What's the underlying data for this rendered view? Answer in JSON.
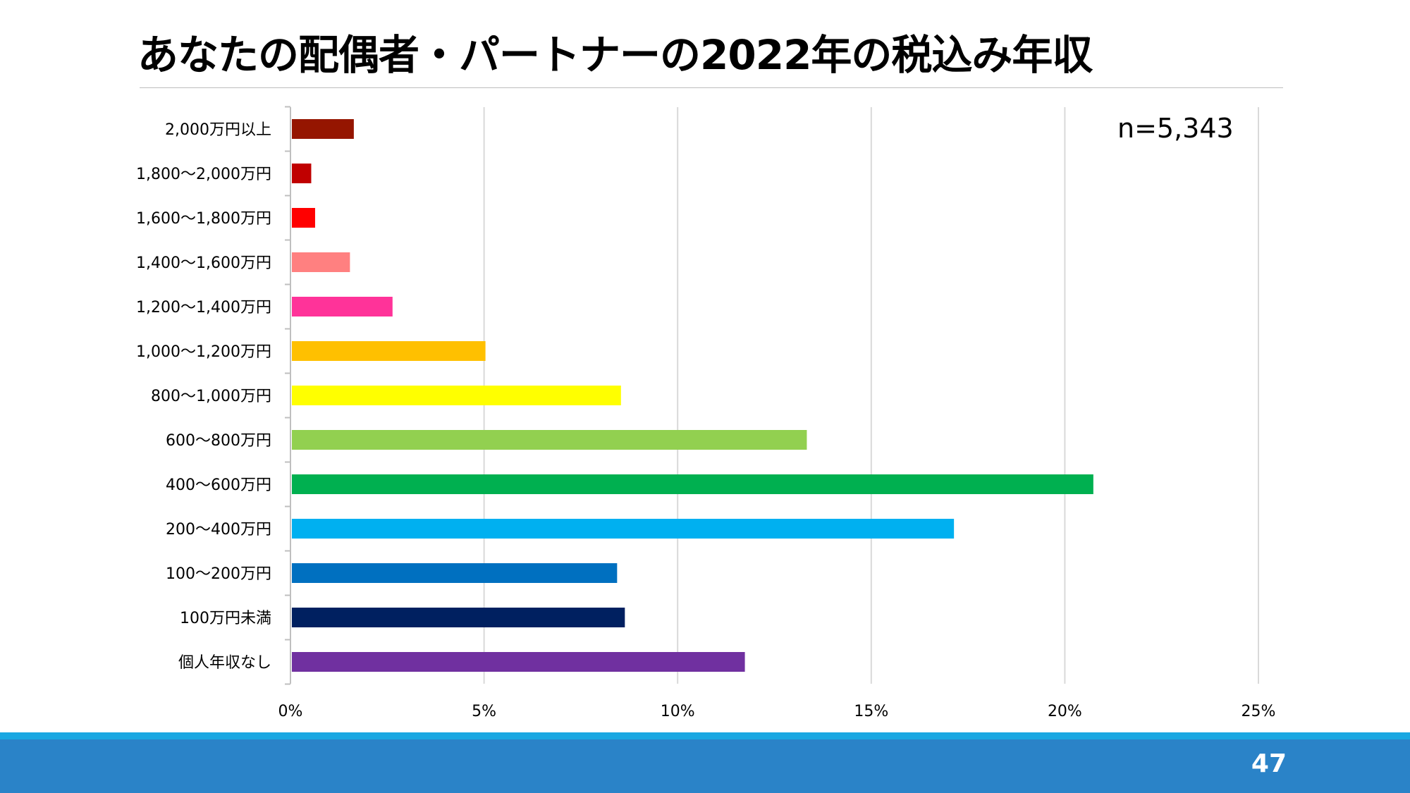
{
  "slide": {
    "title": "あなたの配偶者・パートナーの2022年の税込み年収",
    "page_number": "47"
  },
  "chart_data": {
    "type": "bar",
    "orientation": "horizontal",
    "annotation": "n=5,343",
    "categories": [
      "2,000万円以上",
      "1,800～2,000万円",
      "1,600～1,800万円",
      "1,400～1,600万円",
      "1,200～1,400万円",
      "1,000～1,200万円",
      "800～1,000万円",
      "600～800万円",
      "400～600万円",
      "200～400万円",
      "100～200万円",
      "100万円未満",
      "個人年収なし"
    ],
    "values": [
      1.6,
      0.5,
      0.6,
      1.5,
      2.6,
      5.0,
      8.5,
      13.3,
      20.7,
      17.1,
      8.4,
      8.6,
      11.7
    ],
    "colors": [
      "#951500",
      "#c00000",
      "#ff0000",
      "#ff8080",
      "#ff3399",
      "#ffc000",
      "#ffff00",
      "#92d050",
      "#00b050",
      "#00b0f0",
      "#0070c0",
      "#002060",
      "#7030a0"
    ],
    "x_ticks": [
      "0%",
      "5%",
      "10%",
      "15%",
      "20%",
      "25%"
    ],
    "xlim": [
      0,
      25
    ],
    "grid": true,
    "xlabel": "",
    "ylabel": ""
  }
}
